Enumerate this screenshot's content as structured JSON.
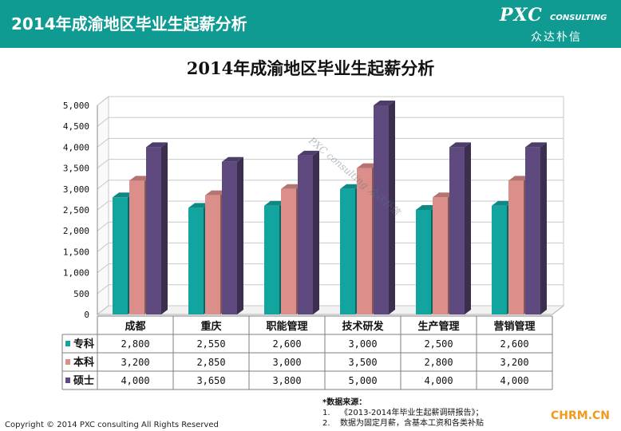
{
  "header": {
    "title": "2014年成渝地区毕业生起薪分析",
    "logo_main": "PXC",
    "logo_sub": "CONSULTING",
    "logo_cn": "众达朴信"
  },
  "chart_title": "2014年成渝地区毕业生起薪分析",
  "chart_data": {
    "type": "bar",
    "title": "2014年成渝地区毕业生起薪分析",
    "categories": [
      "成都",
      "重庆",
      "职能管理",
      "技术研发",
      "生产管理",
      "营销管理"
    ],
    "series": [
      {
        "name": "专科",
        "values": [
          2800,
          2550,
          2600,
          3000,
          2500,
          2600
        ],
        "color": "#12a5a0"
      },
      {
        "name": "本科",
        "values": [
          3200,
          2850,
          3000,
          3500,
          2800,
          3200
        ],
        "color": "#dc8e8a"
      },
      {
        "name": "硕士",
        "values": [
          4000,
          3650,
          3800,
          5000,
          4000,
          4000
        ],
        "color": "#5f4a80"
      }
    ],
    "value_labels": [
      [
        "2,800",
        "2,550",
        "2,600",
        "3,000",
        "2,500",
        "2,600"
      ],
      [
        "3,200",
        "2,850",
        "3,000",
        "3,500",
        "2,800",
        "3,200"
      ],
      [
        "4,000",
        "3,650",
        "3,800",
        "5,000",
        "4,000",
        "4,000"
      ]
    ],
    "ylim": [
      0,
      5000
    ],
    "yticks": [
      0,
      500,
      1000,
      1500,
      2000,
      2500,
      3000,
      3500,
      4000,
      4500,
      5000
    ],
    "ytick_labels": [
      "0",
      "500",
      "1,000",
      "1,500",
      "2,000",
      "2,500",
      "3,000",
      "3,500",
      "4,000",
      "4,500",
      "5,000"
    ],
    "grid": true,
    "legend": "data-table",
    "style": "3d-clustered-column"
  },
  "watermark": "PXC consulting 众达朴信",
  "notes": {
    "title": "*数据来源：",
    "items": [
      {
        "num": "1.",
        "text": "《2013-2014年毕业生起薪调研报告》；"
      },
      {
        "num": "2.",
        "text": "数据为固定月薪，含基本工资和各类补贴"
      }
    ]
  },
  "copyright": "Copyright © 2014 PXC consulting All Rights Reserved",
  "corner_mark": "CHRM.CN"
}
